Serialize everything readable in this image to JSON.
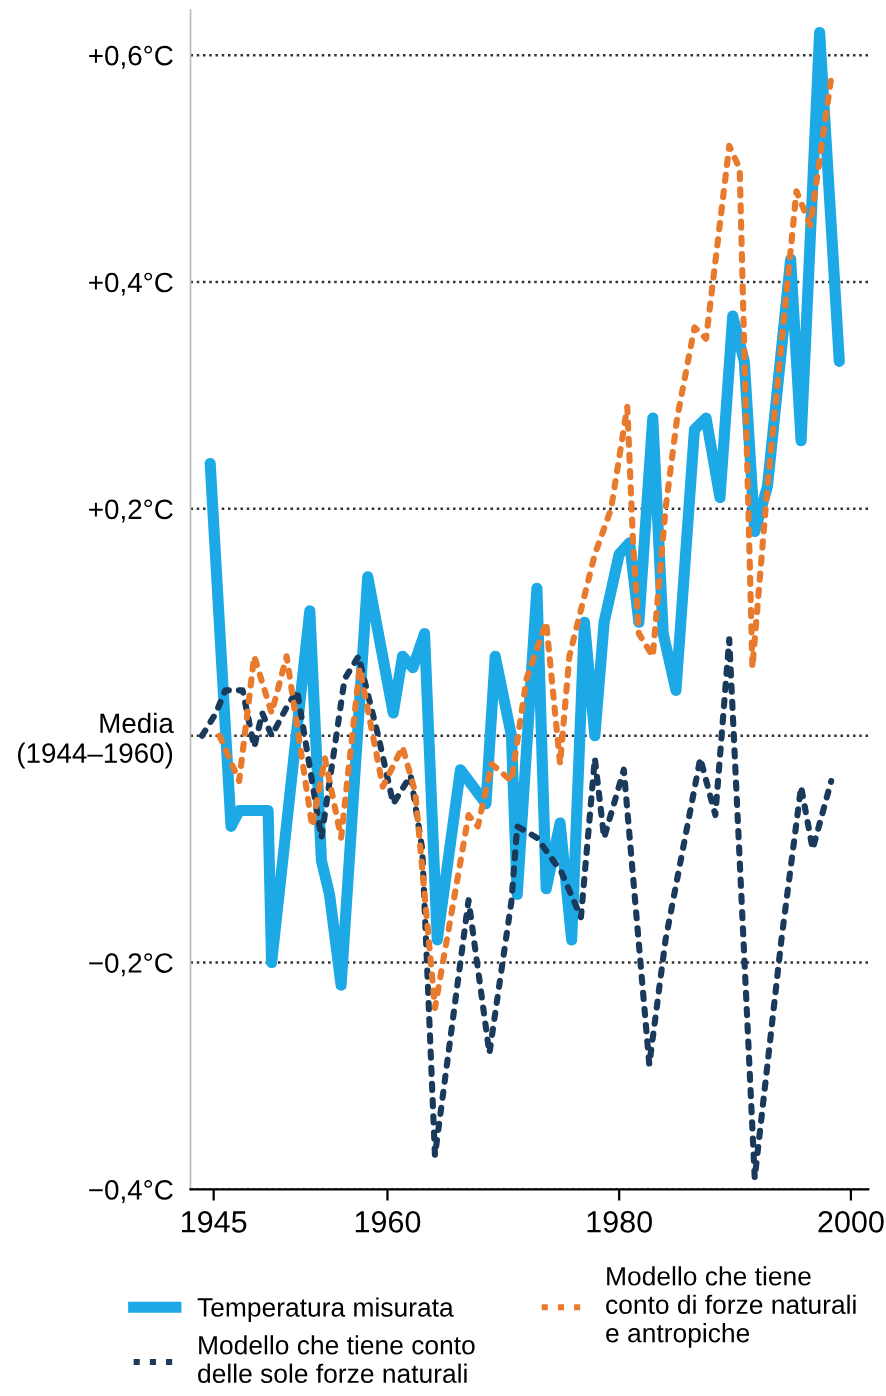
{
  "chart_data": {
    "type": "line",
    "xlim": [
      1943,
      2001.5
    ],
    "xticks": [
      1945,
      1960,
      1980,
      2000
    ],
    "ylim": [
      -0.4,
      0.64
    ],
    "yticks": [
      {
        "value": 0.6,
        "label": "+0,6°C"
      },
      {
        "value": 0.4,
        "label": "+0,4°C"
      },
      {
        "value": 0.2,
        "label": "+0,2°C"
      },
      {
        "value": 0,
        "label": "Media\n(1944–1960)"
      },
      {
        "value": -0.2,
        "label": "−0,2°C"
      },
      {
        "value": -0.4,
        "label": "−0,4°C"
      }
    ],
    "grid": "y",
    "legend": "bottom",
    "marker": "none",
    "series": [
      {
        "name": "Temperatura misurata",
        "color": "#1ca9e6",
        "line_style": "solid",
        "x": [
          1944.7,
          1946.5,
          1947.2,
          1949.7,
          1950,
          1953.3,
          1954.3,
          1955,
          1956,
          1958.3,
          1960.5,
          1961.3,
          1962.2,
          1963.2,
          1964.3,
          1966.3,
          1968.5,
          1969.3,
          1970.7,
          1971.2,
          1972.9,
          1973.7,
          1974.9,
          1975.9,
          1977,
          1977.9,
          1978.7,
          1980,
          1980.9,
          1981.7,
          1982.9,
          1983.8,
          1984.9,
          1986.5,
          1987.5,
          1988.7,
          1989.8,
          1990.8,
          1991.7,
          1992.8,
          1994.8,
          1995.7,
          1997.3,
          1999
        ],
        "values": [
          0.24,
          -0.08,
          -0.066,
          -0.066,
          -0.2,
          0.11,
          -0.11,
          -0.14,
          -0.22,
          0.14,
          0.02,
          0.07,
          0.06,
          0.09,
          -0.18,
          -0.03,
          -0.06,
          0.07,
          0.0,
          -0.14,
          0.13,
          -0.135,
          -0.077,
          -0.18,
          0.1,
          0.0,
          0.1,
          0.16,
          0.17,
          0.1,
          0.28,
          0.09,
          0.04,
          0.27,
          0.28,
          0.21,
          0.37,
          0.33,
          0.18,
          0.22,
          0.42,
          0.26,
          0.62,
          0.33
        ]
      },
      {
        "name": "Modello che tiene conto\ndelle sole forze naturali",
        "color": "#1a3a5c",
        "line_style": "dotted",
        "x": [
          1944,
          1945.2,
          1946,
          1947.5,
          1948.5,
          1949.2,
          1950,
          1951.3,
          1952.2,
          1954.3,
          1956.3,
          1957.5,
          1959.2,
          1960.5,
          1962,
          1963,
          1964.1,
          1967,
          1968.8,
          1970.7,
          1971.2,
          1972.9,
          1975,
          1976.7,
          1977.9,
          1978.7,
          1980.4,
          1982.6,
          1984,
          1987,
          1988.3,
          1989.5,
          1991.7,
          1994,
          1995.7,
          1996.7,
          1998.3
        ],
        "values": [
          0.0,
          0.02,
          0.04,
          0.04,
          -0.01,
          0.02,
          0.0,
          0.025,
          0.04,
          -0.09,
          0.05,
          0.07,
          0.0,
          -0.06,
          -0.035,
          -0.1,
          -0.37,
          -0.145,
          -0.28,
          -0.146,
          -0.08,
          -0.09,
          -0.12,
          -0.16,
          -0.02,
          -0.09,
          -0.03,
          -0.29,
          -0.18,
          -0.02,
          -0.07,
          0.085,
          -0.39,
          -0.18,
          -0.045,
          -0.1,
          -0.04
        ]
      },
      {
        "name": "Modello che tiene\nconto di forze naturali\ne antropiche",
        "color": "#e87a2e",
        "line_style": "dotted",
        "x": [
          1945.5,
          1947.2,
          1948.5,
          1950,
          1951.3,
          1953.5,
          1954.6,
          1956,
          1957.6,
          1959.6,
          1961.3,
          1962.4,
          1964.1,
          1967,
          1967.8,
          1969,
          1970.7,
          1972,
          1973.7,
          1974.9,
          1975.7,
          1977.9,
          1979.3,
          1980.7,
          1981.2,
          1981.7,
          1982.9,
          1984,
          1985,
          1986.5,
          1987.5,
          1989.5,
          1990.4,
          1991.5,
          1992.8,
          1995.3,
          1996.5,
          1998.3
        ],
        "values": [
          0.0,
          -0.04,
          0.07,
          0.02,
          0.07,
          -0.08,
          -0.02,
          -0.09,
          0.06,
          -0.045,
          -0.01,
          -0.05,
          -0.24,
          -0.07,
          -0.08,
          -0.025,
          -0.04,
          0.05,
          0.1,
          -0.025,
          0.07,
          0.16,
          0.2,
          0.29,
          0.17,
          0.09,
          0.07,
          0.2,
          0.28,
          0.36,
          0.35,
          0.52,
          0.5,
          0.06,
          0.22,
          0.48,
          0.45,
          0.58
        ]
      }
    ]
  }
}
